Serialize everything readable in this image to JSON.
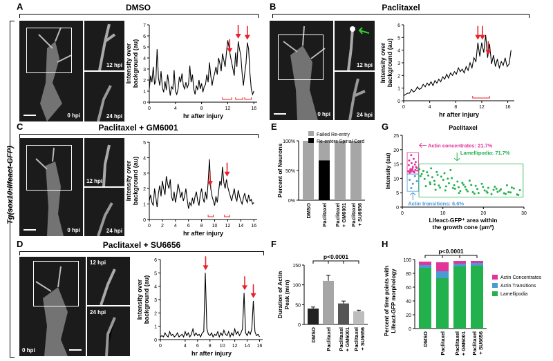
{
  "side_label": "Tg(sox10:lifeact-GFP)",
  "panels": {
    "A": {
      "letter": "A",
      "title": "DMSO",
      "t0": "0 hpi",
      "t12": "12 hpi",
      "t24": "24 hpi"
    },
    "B": {
      "letter": "B",
      "title": "Paclitaxel",
      "t0": "0 hpi",
      "t12": "12 hpi",
      "t24": "24 hpi"
    },
    "C": {
      "letter": "C",
      "title": "Paclitaxel + GM6001",
      "t0": "0 hpi",
      "t12": "12 hpi",
      "t24": "24 hpi"
    },
    "D": {
      "letter": "D",
      "title": "Paclitaxel + SU6656",
      "t0": "0 hpi",
      "t12": "12 hpi",
      "t24": "24 hpi"
    },
    "E": {
      "letter": "E"
    },
    "F": {
      "letter": "F"
    },
    "G": {
      "letter": "G"
    },
    "H": {
      "letter": "H"
    }
  },
  "colors": {
    "arrow": "#e8202a",
    "green_arrow": "#2fd12f",
    "pink": "#e0369a",
    "blue": "#4a9bd4",
    "green": "#22b14c",
    "gray": "#a6a6a6",
    "black": "#000000"
  },
  "chart_data": [
    {
      "id": "A",
      "type": "line",
      "xlabel": "hr after injury",
      "ylabel": "Intensity over background (au)",
      "xlim": [
        0,
        16.5
      ],
      "ylim": [
        0,
        7
      ],
      "xticks": [
        "0",
        "4",
        "8",
        "12",
        "16"
      ],
      "yticks": [
        "0",
        "1",
        "2",
        "3",
        "4",
        "5",
        "6",
        "7"
      ],
      "peaks_at": [
        12.3,
        13.6,
        15.0
      ],
      "x": [
        0,
        0.2,
        0.4,
        0.6,
        0.8,
        1,
        1.2,
        1.4,
        1.6,
        1.8,
        2,
        2.2,
        2.4,
        2.6,
        2.8,
        3,
        3.2,
        3.4,
        3.6,
        3.8,
        4,
        4.2,
        4.4,
        4.6,
        4.8,
        5,
        5.2,
        5.4,
        5.6,
        5.8,
        6,
        6.2,
        6.4,
        6.6,
        6.8,
        7,
        7.2,
        7.4,
        7.6,
        7.8,
        8,
        8.2,
        8.4,
        8.6,
        8.8,
        9,
        9.2,
        9.4,
        9.6,
        9.8,
        10,
        10.2,
        10.4,
        10.6,
        10.8,
        11,
        11.2,
        11.4,
        11.6,
        11.8,
        12,
        12.2,
        12.4,
        12.6,
        12.8,
        13,
        13.2,
        13.4,
        13.6,
        13.8,
        14,
        14.2,
        14.4,
        14.6,
        14.8,
        15,
        15.2,
        15.4,
        15.6,
        15.8,
        16
      ],
      "y": [
        1.2,
        2.4,
        1.8,
        3.2,
        1.6,
        2.0,
        4.8,
        2.2,
        1.5,
        2.8,
        1.3,
        0.9,
        1.9,
        1.1,
        2.5,
        1.6,
        0.6,
        1.4,
        1.2,
        2.9,
        1.0,
        0.7,
        1.2,
        2.3,
        1.8,
        2.6,
        1.5,
        1.2,
        1.8,
        1.3,
        1.6,
        3.3,
        1.8,
        2.5,
        1.2,
        0.7,
        1.5,
        1.1,
        2.0,
        1.2,
        1.7,
        0.9,
        1.4,
        1.6,
        2.5,
        1.8,
        3.6,
        2.4,
        1.5,
        2.2,
        2.6,
        3.2,
        2.5,
        4.0,
        3.5,
        2.8,
        4.4,
        3.8,
        3.2,
        4.5,
        5.6,
        5.0,
        4.2,
        3.6,
        3.0,
        2.4,
        4.5,
        3.2,
        5.5,
        4.8,
        4.2,
        2.6,
        1.5,
        2.6,
        3.5,
        5.4,
        4.8,
        2.6,
        1.2,
        0.7,
        1.0
      ],
      "brackets": [
        [
          11.2,
          12.6
        ],
        [
          13.2,
          14.3
        ],
        [
          14.6,
          15.6
        ]
      ]
    },
    {
      "id": "B",
      "type": "line",
      "xlabel": "hr after injury",
      "ylabel": "Intensity over background (au)",
      "xlim": [
        0,
        17
      ],
      "ylim": [
        0,
        6
      ],
      "xticks": [
        "0",
        "4",
        "8",
        "12",
        "16"
      ],
      "yticks": [
        "0",
        "1",
        "2",
        "3",
        "4",
        "5",
        "6"
      ],
      "peaks_at": [
        11.4,
        12.1,
        13.0
      ],
      "x": [
        0,
        0.3,
        0.6,
        0.9,
        1.2,
        1.5,
        1.8,
        2.1,
        2.4,
        2.7,
        3,
        3.3,
        3.6,
        3.9,
        4.2,
        4.5,
        4.8,
        5.1,
        5.4,
        5.7,
        6,
        6.3,
        6.6,
        6.9,
        7.2,
        7.5,
        7.8,
        8.1,
        8.4,
        8.7,
        9,
        9.3,
        9.6,
        9.9,
        10.2,
        10.5,
        10.8,
        11.1,
        11.4,
        11.7,
        12,
        12.3,
        12.6,
        12.9,
        13.2,
        13.5,
        13.8,
        14.1,
        14.4,
        14.7,
        15,
        15.3,
        15.6,
        15.9,
        16.2,
        16.5
      ],
      "y": [
        0.4,
        0.5,
        0.6,
        0.6,
        0.9,
        0.7,
        0.8,
        1.1,
        0.9,
        1.0,
        1.3,
        1.1,
        1.4,
        1.2,
        1.5,
        1.2,
        1.6,
        1.4,
        1.7,
        1.5,
        1.9,
        1.7,
        2.1,
        1.8,
        2.2,
        2.0,
        2.3,
        2.1,
        2.6,
        2.3,
        2.5,
        2.2,
        2.7,
        2.4,
        3.0,
        2.6,
        3.4,
        3.1,
        4.6,
        3.5,
        4.6,
        3.8,
        5.2,
        3.4,
        4.5,
        2.9,
        3.6,
        2.7,
        3.3,
        2.6,
        3.1,
        2.8,
        3.4,
        2.7,
        2.9,
        4.0
      ],
      "brackets": [
        [
          10.6,
          13.2
        ]
      ]
    },
    {
      "id": "C",
      "type": "line",
      "xlabel": "hr after injury",
      "ylabel": "Intensity over background (au)",
      "xlim": [
        0,
        16.5
      ],
      "ylim": [
        0,
        5
      ],
      "xticks": [
        "0",
        "2",
        "4",
        "6",
        "8",
        "10",
        "12",
        "14",
        "16"
      ],
      "yticks": [
        "0",
        "1",
        "2",
        "3",
        "4",
        "5"
      ],
      "peaks_at": [
        9.3,
        11.9
      ],
      "x": [
        0,
        0.2,
        0.4,
        0.6,
        0.8,
        1,
        1.2,
        1.4,
        1.6,
        1.8,
        2,
        2.2,
        2.4,
        2.6,
        2.8,
        3,
        3.2,
        3.4,
        3.6,
        3.8,
        4,
        4.2,
        4.4,
        4.6,
        4.8,
        5,
        5.2,
        5.4,
        5.6,
        5.8,
        6,
        6.2,
        6.4,
        6.6,
        6.8,
        7,
        7.2,
        7.4,
        7.6,
        7.8,
        8,
        8.2,
        8.4,
        8.6,
        8.8,
        9,
        9.2,
        9.4,
        9.6,
        9.8,
        10,
        10.2,
        10.4,
        10.6,
        10.8,
        11,
        11.2,
        11.4,
        11.6,
        11.8,
        12,
        12.2,
        12.4,
        12.6,
        12.8,
        13,
        13.2,
        13.4,
        13.6,
        13.8,
        14,
        14.2,
        14.4,
        14.6,
        14.8,
        15,
        15.2,
        15.4,
        15.6,
        15.8,
        16
      ],
      "y": [
        1.2,
        1.6,
        1.1,
        0.9,
        2.0,
        1.4,
        0.8,
        1.7,
        2.2,
        1.5,
        2.5,
        2.0,
        1.6,
        2.8,
        2.3,
        2.0,
        2.6,
        1.5,
        1.2,
        1.8,
        1.1,
        1.6,
        2.3,
        1.9,
        1.4,
        1.8,
        1.2,
        1.5,
        2.0,
        1.3,
        0.7,
        1.1,
        0.9,
        1.4,
        1.0,
        1.5,
        1.8,
        1.2,
        0.9,
        1.6,
        2.0,
        1.4,
        1.1,
        1.8,
        1.3,
        2.4,
        3.9,
        2.0,
        1.5,
        1.2,
        0.9,
        1.5,
        1.1,
        1.8,
        2.5,
        2.2,
        3.4,
        2.4,
        2.0,
        2.6,
        2.1,
        1.8,
        1.5,
        1.2,
        1.6,
        2.0,
        1.4,
        1.2,
        1.9,
        1.5,
        1.2,
        1.0,
        1.4,
        1.7,
        1.3,
        1.1,
        1.6,
        1.2,
        1.3,
        1.0,
        1.1
      ],
      "brackets": [
        [
          9.0,
          9.8
        ],
        [
          11.5,
          12.3
        ]
      ]
    },
    {
      "id": "D",
      "type": "line",
      "xlabel": "hr after injury",
      "ylabel": "Intensity over background (au)",
      "xlim": [
        0,
        16.5
      ],
      "ylim": [
        0,
        6
      ],
      "xticks": [
        "0",
        "4",
        "6",
        "8",
        "10",
        "12",
        "14",
        "16"
      ],
      "yticks": [
        "0",
        "1",
        "2",
        "3",
        "4",
        "5",
        "6"
      ],
      "peaks_at": [
        7.3,
        13.6,
        15.0
      ],
      "x": [
        0,
        0.25,
        0.5,
        0.75,
        1,
        1.25,
        1.5,
        1.75,
        2,
        2.25,
        2.5,
        2.75,
        3,
        3.25,
        3.5,
        3.75,
        4,
        4.25,
        4.5,
        4.75,
        5,
        5.25,
        5.5,
        5.75,
        6,
        6.25,
        6.5,
        6.75,
        7,
        7.25,
        7.5,
        7.75,
        8,
        8.25,
        8.5,
        8.75,
        9,
        9.25,
        9.5,
        9.75,
        10,
        10.25,
        10.5,
        10.75,
        11,
        11.25,
        11.5,
        11.75,
        12,
        12.25,
        12.5,
        12.75,
        13,
        13.25,
        13.5,
        13.75,
        14,
        14.25,
        14.5,
        14.75,
        15,
        15.25,
        15.5,
        15.75,
        16
      ],
      "y": [
        0.2,
        0.3,
        0.2,
        0.5,
        0.3,
        0.2,
        0.6,
        0.3,
        0.4,
        0.2,
        0.3,
        0.5,
        0.2,
        0.3,
        0.4,
        0.2,
        0.6,
        0.3,
        0.5,
        0.2,
        0.4,
        0.8,
        0.3,
        0.5,
        0.3,
        0.4,
        0.2,
        0.5,
        0.6,
        5.0,
        0.8,
        0.4,
        0.3,
        0.5,
        0.2,
        0.4,
        0.3,
        0.6,
        0.2,
        0.5,
        0.3,
        0.7,
        0.4,
        0.3,
        0.6,
        0.2,
        0.5,
        0.3,
        0.8,
        0.4,
        0.6,
        0.3,
        0.5,
        0.8,
        3.5,
        0.5,
        0.3,
        0.6,
        0.4,
        0.8,
        2.9,
        0.6,
        0.3,
        0.4,
        0.2
      ],
      "brackets": []
    },
    {
      "id": "E",
      "type": "bar",
      "stacked": true,
      "ylabel": "Percent of Neurons",
      "ylim": [
        0,
        100
      ],
      "yticks": [
        "0%",
        "50%",
        "100%"
      ],
      "categories": [
        "DMSO",
        "Paclitaxel",
        "Paclitaxel + GM6001",
        "Paclitaxel + SU6656"
      ],
      "series": [
        {
          "name": "Re-enters Spinal Cord",
          "values": [
            0,
            67,
            0,
            0
          ]
        },
        {
          "name": "Failed Re-entry",
          "values": [
            100,
            33,
            100,
            100
          ]
        }
      ]
    },
    {
      "id": "F",
      "type": "bar",
      "ylabel": "Duration of Actin Peak (min)",
      "ylim": [
        0,
        150
      ],
      "yticks": [
        "0",
        "50",
        "100",
        "150"
      ],
      "annotation": "p<0.0001",
      "categories": [
        "DMSO",
        "Paclitaxel",
        "Paclitaxel + GM6001",
        "Paclitaxel + SU6656"
      ],
      "values": [
        40,
        110,
        53,
        33
      ],
      "errors": [
        4,
        14,
        6,
        3
      ]
    },
    {
      "id": "G",
      "type": "scatter",
      "title": "Paclitaxel",
      "xlabel": "Lifeact-GFP⁺ area within the growth cone (µm²)",
      "ylabel": "Intensity (au)",
      "xlim": [
        0,
        30
      ],
      "ylim": [
        0,
        25
      ],
      "xticks": [
        "0",
        "10",
        "20",
        "30"
      ],
      "yticks": [
        "0",
        "5",
        "10",
        "15",
        "20",
        "25"
      ],
      "annotations": [
        "Actin concentrates: 21.7%",
        "Lamellipodia: 71.7%",
        "Actin transitions: 6.6%"
      ],
      "pink_x": [
        1.5,
        2.0,
        2.2,
        2.6,
        3.0,
        3.3,
        2.4,
        1.8,
        3.6,
        2.8,
        2.1,
        3.2,
        1.6,
        2.9,
        3.4,
        2.3,
        1.9,
        3.1,
        2.7,
        3.7,
        2.5,
        1.7
      ],
      "pink_y": [
        12.5,
        13.2,
        18.1,
        14.0,
        12.1,
        15.7,
        12.8,
        12.0,
        13.6,
        16.8,
        12.3,
        12.9,
        14.6,
        12.2,
        13.9,
        15.3,
        12.6,
        14.8,
        12.4,
        12.7,
        13.3,
        16.2
      ],
      "blue_x": [
        1.8,
        2.6,
        3.1,
        2.2,
        3.6
      ],
      "blue_y": [
        9.5,
        8.1,
        10.8,
        6.6,
        9.0
      ],
      "green_x": [
        4.2,
        4.8,
        5.5,
        6.1,
        6.8,
        7.4,
        8.0,
        8.7,
        9.3,
        10.1,
        10.8,
        11.5,
        12.2,
        13.0,
        13.6,
        14.3,
        15.1,
        15.8,
        16.6,
        17.4,
        18.1,
        18.8,
        19.6,
        20.3,
        21.2,
        22.0,
        22.8,
        23.5,
        24.3,
        25.1,
        25.8,
        26.7,
        27.5,
        28.3,
        29.0,
        4.5,
        5.2,
        6.4,
        7.1,
        7.9,
        8.5,
        9.6,
        10.4,
        11.2,
        11.9,
        12.8,
        13.9,
        14.8,
        16.1,
        17.0,
        18.5,
        19.9,
        21.0,
        22.5,
        24.0,
        25.5,
        27.0,
        28.6,
        5.8,
        6.9,
        8.2,
        9.0,
        10.6,
        12.5,
        14.0,
        15.5,
        17.8,
        20.8,
        23.2,
        26.2
      ],
      "green_y": [
        13.2,
        11.5,
        9.8,
        12.1,
        8.6,
        10.4,
        7.9,
        11.2,
        6.8,
        9.5,
        7.2,
        8.3,
        10.1,
        6.4,
        8.9,
        5.6,
        7.8,
        6.1,
        9.2,
        5.2,
        7.4,
        4.9,
        8.1,
        5.8,
        6.7,
        4.5,
        7.1,
        5.3,
        6.2,
        4.8,
        7.6,
        5.1,
        6.5,
        4.4,
        5.9,
        10.8,
        12.6,
        11.0,
        13.5,
        9.1,
        12.2,
        10.6,
        11.8,
        9.9,
        12.9,
        7.6,
        6.9,
        8.4,
        5.5,
        7.7,
        6.3,
        7.0,
        5.0,
        6.0,
        5.7,
        4.6,
        6.8,
        4.2,
        7.3,
        8.0,
        6.0,
        7.5,
        5.8,
        6.6,
        4.9,
        7.1,
        4.7,
        5.4,
        6.4,
        5.2
      ]
    },
    {
      "id": "H",
      "type": "bar",
      "stacked": true,
      "ylabel": "Percent of time points with Lifeact-GFP morphology",
      "ylim": [
        0,
        100
      ],
      "yticks": [
        "0",
        "20",
        "40",
        "60",
        "80",
        "100"
      ],
      "annotation": "p<0.0001",
      "categories": [
        "DMSO",
        "Paclitaxel",
        "Paclitaxel + GM6001",
        "Paclitaxel + SU6656"
      ],
      "series": [
        {
          "name": "Lamellipodia",
          "values": [
            88,
            73,
            90,
            91
          ]
        },
        {
          "name": "Actin Transitions",
          "values": [
            4,
            10,
            4,
            4
          ]
        },
        {
          "name": "Actin Concentrates",
          "values": [
            5,
            13,
            4,
            3
          ]
        }
      ]
    }
  ]
}
